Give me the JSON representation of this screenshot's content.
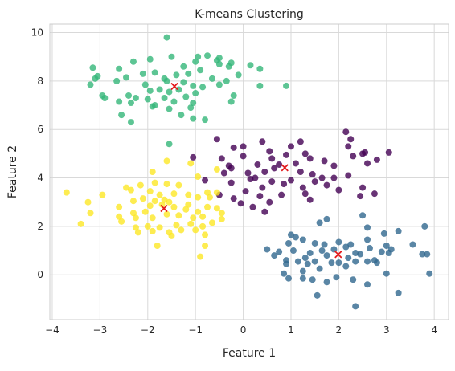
{
  "chart_data": {
    "type": "scatter",
    "title": "K-means Clustering",
    "xlabel": "Feature 1",
    "ylabel": "Feature 2",
    "xlim": [
      -4.05,
      4.3
    ],
    "ylim": [
      -1.85,
      10.35
    ],
    "x_ticks": [
      -4,
      -3,
      -2,
      -1,
      0,
      1,
      2,
      3,
      4
    ],
    "y_ticks": [
      0,
      2,
      4,
      6,
      8,
      10
    ],
    "grid": true,
    "legend": "none",
    "colors": {
      "purple_cluster": "#440154",
      "blue_cluster": "#31688e",
      "green_cluster": "#35b779",
      "yellow_cluster": "#fde725",
      "centroid": "#e31a1c",
      "grid": "#d9d9d9",
      "frame": "#cccccc"
    },
    "series": [
      {
        "color_key": "purple_cluster",
        "points": [
          [
            -0.55,
            5.6
          ],
          [
            -0.2,
            5.25
          ],
          [
            0.0,
            5.3
          ],
          [
            0.4,
            5.5
          ],
          [
            0.55,
            5.1
          ],
          [
            1.2,
            5.5
          ],
          [
            1.0,
            5.3
          ],
          [
            1.3,
            5.0
          ],
          [
            -0.45,
            4.8
          ],
          [
            -1.05,
            4.85
          ],
          [
            -0.3,
            4.5
          ],
          [
            0.0,
            4.9
          ],
          [
            0.3,
            4.55
          ],
          [
            0.6,
            4.8
          ],
          [
            0.75,
            4.55
          ],
          [
            0.9,
            4.95
          ],
          [
            1.1,
            4.6
          ],
          [
            1.4,
            4.8
          ],
          [
            1.7,
            4.7
          ],
          [
            1.9,
            4.5
          ],
          [
            2.3,
            4.9
          ],
          [
            2.6,
            4.6
          ],
          [
            2.2,
            5.3
          ],
          [
            2.5,
            5.0
          ],
          [
            2.15,
            5.9
          ],
          [
            2.25,
            5.6
          ],
          [
            2.55,
            5.05
          ],
          [
            2.8,
            4.75
          ],
          [
            3.05,
            5.05
          ],
          [
            -0.4,
            4.2
          ],
          [
            -0.25,
            4.4
          ],
          [
            0.1,
            4.2
          ],
          [
            0.25,
            4.0
          ],
          [
            0.45,
            4.25
          ],
          [
            0.65,
            4.4
          ],
          [
            1.2,
            4.25
          ],
          [
            1.45,
            4.15
          ],
          [
            1.65,
            4.0
          ],
          [
            1.9,
            4.0
          ],
          [
            2.2,
            4.1
          ],
          [
            -0.8,
            3.9
          ],
          [
            -0.25,
            3.8
          ],
          [
            0.15,
            3.95
          ],
          [
            0.4,
            3.6
          ],
          [
            0.6,
            3.85
          ],
          [
            0.85,
            3.75
          ],
          [
            1.0,
            3.9
          ],
          [
            1.25,
            3.6
          ],
          [
            1.5,
            3.85
          ],
          [
            1.75,
            3.7
          ],
          [
            2.0,
            3.5
          ],
          [
            2.5,
            3.6
          ],
          [
            2.75,
            3.35
          ],
          [
            -0.5,
            3.3
          ],
          [
            -0.2,
            3.15
          ],
          [
            0.05,
            3.45
          ],
          [
            0.35,
            3.25
          ],
          [
            0.55,
            3.0
          ],
          [
            1.3,
            3.35
          ],
          [
            1.4,
            3.1
          ],
          [
            2.45,
            3.25
          ],
          [
            -0.05,
            2.95
          ],
          [
            0.2,
            2.8
          ],
          [
            0.45,
            2.6
          ],
          [
            0.8,
            3.3
          ]
        ]
      },
      {
        "color_key": "blue_cluster",
        "points": [
          [
            2.5,
            2.45
          ],
          [
            3.8,
            2.0
          ],
          [
            1.0,
            1.65
          ],
          [
            1.75,
            2.3
          ],
          [
            1.6,
            2.15
          ],
          [
            2.6,
            1.95
          ],
          [
            2.95,
            1.7
          ],
          [
            3.25,
            1.8
          ],
          [
            0.95,
            1.3
          ],
          [
            1.25,
            1.45
          ],
          [
            1.1,
            1.55
          ],
          [
            1.5,
            1.3
          ],
          [
            1.7,
            1.25
          ],
          [
            2.0,
            1.35
          ],
          [
            2.25,
            1.25
          ],
          [
            2.6,
            1.45
          ],
          [
            3.0,
            1.2
          ],
          [
            3.55,
            1.25
          ],
          [
            0.5,
            1.05
          ],
          [
            0.75,
            0.95
          ],
          [
            1.05,
            1.0
          ],
          [
            1.4,
            0.9
          ],
          [
            1.65,
            1.0
          ],
          [
            1.9,
            1.05
          ],
          [
            2.15,
            1.15
          ],
          [
            2.35,
            0.9
          ],
          [
            2.65,
            1.1
          ],
          [
            2.9,
            0.95
          ],
          [
            3.1,
            1.05
          ],
          [
            0.65,
            0.8
          ],
          [
            0.9,
            0.6
          ],
          [
            1.3,
            0.7
          ],
          [
            1.5,
            0.55
          ],
          [
            1.75,
            0.8
          ],
          [
            2.0,
            0.5
          ],
          [
            2.2,
            0.7
          ],
          [
            2.45,
            0.85
          ],
          [
            2.75,
            0.6
          ],
          [
            3.05,
            0.9
          ],
          [
            3.75,
            0.85
          ],
          [
            0.9,
            0.45
          ],
          [
            1.15,
            0.55
          ],
          [
            1.35,
            0.45
          ],
          [
            1.6,
            0.25
          ],
          [
            1.85,
            0.5
          ],
          [
            2.15,
            0.35
          ],
          [
            2.35,
            0.55
          ],
          [
            2.6,
            0.55
          ],
          [
            2.8,
            0.5
          ],
          [
            0.85,
            0.05
          ],
          [
            1.25,
            -0.15
          ],
          [
            1.45,
            -0.2
          ],
          [
            1.95,
            -0.1
          ],
          [
            2.3,
            -0.2
          ],
          [
            3.0,
            0.05
          ],
          [
            3.9,
            0.05
          ],
          [
            0.95,
            -0.15
          ],
          [
            1.75,
            -0.3
          ],
          [
            2.6,
            -0.4
          ],
          [
            1.55,
            -0.85
          ],
          [
            3.25,
            -0.75
          ],
          [
            2.35,
            -1.3
          ],
          [
            3.85,
            0.85
          ],
          [
            1.25,
            0.15
          ]
        ]
      },
      {
        "color_key": "green_cluster",
        "points": [
          [
            -1.6,
            9.8
          ],
          [
            -1.5,
            9.0
          ],
          [
            -1.95,
            8.9
          ],
          [
            -0.75,
            9.05
          ],
          [
            -1.0,
            8.8
          ],
          [
            -0.95,
            9.0
          ],
          [
            -0.5,
            8.95
          ],
          [
            -0.55,
            8.85
          ],
          [
            -0.5,
            8.7
          ],
          [
            -0.3,
            8.6
          ],
          [
            -0.25,
            8.75
          ],
          [
            0.15,
            8.65
          ],
          [
            -3.15,
            8.55
          ],
          [
            -2.3,
            8.8
          ],
          [
            -2.6,
            8.5
          ],
          [
            -1.25,
            8.6
          ],
          [
            -1.4,
            8.25
          ],
          [
            -1.15,
            8.3
          ],
          [
            -1.65,
            8.1
          ],
          [
            -1.85,
            8.35
          ],
          [
            -2.1,
            8.3
          ],
          [
            -0.9,
            8.45
          ],
          [
            -0.65,
            8.1
          ],
          [
            -0.35,
            8.0
          ],
          [
            -3.05,
            8.2
          ],
          [
            -3.2,
            7.85
          ],
          [
            -3.1,
            8.1
          ],
          [
            -2.95,
            7.4
          ],
          [
            -2.9,
            7.3
          ],
          [
            -2.65,
            8.0
          ],
          [
            -2.45,
            8.15
          ],
          [
            -1.6,
            8.0
          ],
          [
            -1.25,
            7.95
          ],
          [
            -1.05,
            7.8
          ],
          [
            -0.85,
            7.75
          ],
          [
            -0.5,
            7.85
          ],
          [
            -0.1,
            8.25
          ],
          [
            0.35,
            8.5
          ],
          [
            0.35,
            7.8
          ],
          [
            0.9,
            7.8
          ],
          [
            -2.05,
            7.85
          ],
          [
            -1.95,
            7.6
          ],
          [
            -1.75,
            7.65
          ],
          [
            -1.55,
            7.55
          ],
          [
            -1.35,
            7.65
          ],
          [
            -1.2,
            7.35
          ],
          [
            -1.0,
            7.5
          ],
          [
            -0.2,
            7.4
          ],
          [
            -2.4,
            7.4
          ],
          [
            -2.25,
            7.3
          ],
          [
            -2.35,
            7.1
          ],
          [
            -2.0,
            7.25
          ],
          [
            -1.85,
            7.0
          ],
          [
            -1.65,
            7.3
          ],
          [
            -1.45,
            7.15
          ],
          [
            -1.05,
            7.1
          ],
          [
            -0.25,
            7.15
          ],
          [
            -2.6,
            7.15
          ],
          [
            -2.35,
            6.3
          ],
          [
            -1.9,
            6.95
          ],
          [
            -1.55,
            6.85
          ],
          [
            -1.3,
            6.6
          ],
          [
            -1.05,
            6.45
          ],
          [
            -0.8,
            6.4
          ],
          [
            -2.55,
            6.6
          ],
          [
            -1.1,
            6.9
          ],
          [
            -1.55,
            5.4
          ]
        ]
      },
      {
        "color_key": "yellow_cluster",
        "points": [
          [
            -1.6,
            4.7
          ],
          [
            -1.1,
            4.6
          ],
          [
            -0.55,
            4.35
          ],
          [
            -0.95,
            4.05
          ],
          [
            -1.9,
            4.25
          ],
          [
            -1.85,
            3.8
          ],
          [
            -1.6,
            3.75
          ],
          [
            -1.35,
            3.7
          ],
          [
            -2.15,
            3.7
          ],
          [
            -2.35,
            3.5
          ],
          [
            -2.45,
            3.6
          ],
          [
            -3.7,
            3.4
          ],
          [
            -1.95,
            3.45
          ],
          [
            -1.75,
            3.3
          ],
          [
            -1.45,
            3.35
          ],
          [
            -1.15,
            3.3
          ],
          [
            -0.95,
            3.2
          ],
          [
            -0.7,
            3.2
          ],
          [
            -0.75,
            3.4
          ],
          [
            -0.55,
            3.4
          ],
          [
            -1.65,
            3.1
          ],
          [
            -1.55,
            3.0
          ],
          [
            -1.85,
            3.05
          ],
          [
            -2.1,
            3.15
          ],
          [
            -2.3,
            3.05
          ],
          [
            -2.95,
            3.3
          ],
          [
            -3.25,
            3.0
          ],
          [
            -2.6,
            2.8
          ],
          [
            -2.3,
            2.55
          ],
          [
            -1.95,
            2.85
          ],
          [
            -1.7,
            2.9
          ],
          [
            -1.45,
            2.8
          ],
          [
            -1.2,
            2.7
          ],
          [
            -0.95,
            2.6
          ],
          [
            -0.75,
            2.8
          ],
          [
            -0.55,
            2.75
          ],
          [
            -1.15,
            2.9
          ],
          [
            -2.05,
            2.6
          ],
          [
            -2.25,
            2.35
          ],
          [
            -1.9,
            2.35
          ],
          [
            -1.6,
            2.5
          ],
          [
            -1.35,
            2.45
          ],
          [
            -1.05,
            2.35
          ],
          [
            -0.85,
            2.4
          ],
          [
            -0.45,
            2.55
          ],
          [
            -0.45,
            2.3
          ],
          [
            -0.65,
            2.15
          ],
          [
            -0.85,
            2.0
          ],
          [
            -1.1,
            2.1
          ],
          [
            -1.4,
            2.05
          ],
          [
            -1.75,
            1.95
          ],
          [
            -2.0,
            2.0
          ],
          [
            -2.25,
            1.95
          ],
          [
            -2.6,
            2.4
          ],
          [
            -2.55,
            2.2
          ],
          [
            -3.2,
            2.55
          ],
          [
            -3.4,
            2.1
          ],
          [
            -1.55,
            1.75
          ],
          [
            -1.9,
            1.8
          ],
          [
            -2.2,
            1.75
          ],
          [
            -1.0,
            1.85
          ],
          [
            -1.3,
            1.85
          ],
          [
            -0.8,
            1.65
          ],
          [
            -1.5,
            1.6
          ],
          [
            -1.8,
            1.2
          ],
          [
            -0.9,
            0.75
          ],
          [
            -0.8,
            1.2
          ]
        ]
      }
    ],
    "centroids": [
      [
        0.87,
        4.42
      ],
      [
        1.99,
        0.84
      ],
      [
        -1.44,
        7.78
      ],
      [
        -1.66,
        2.74
      ]
    ]
  }
}
